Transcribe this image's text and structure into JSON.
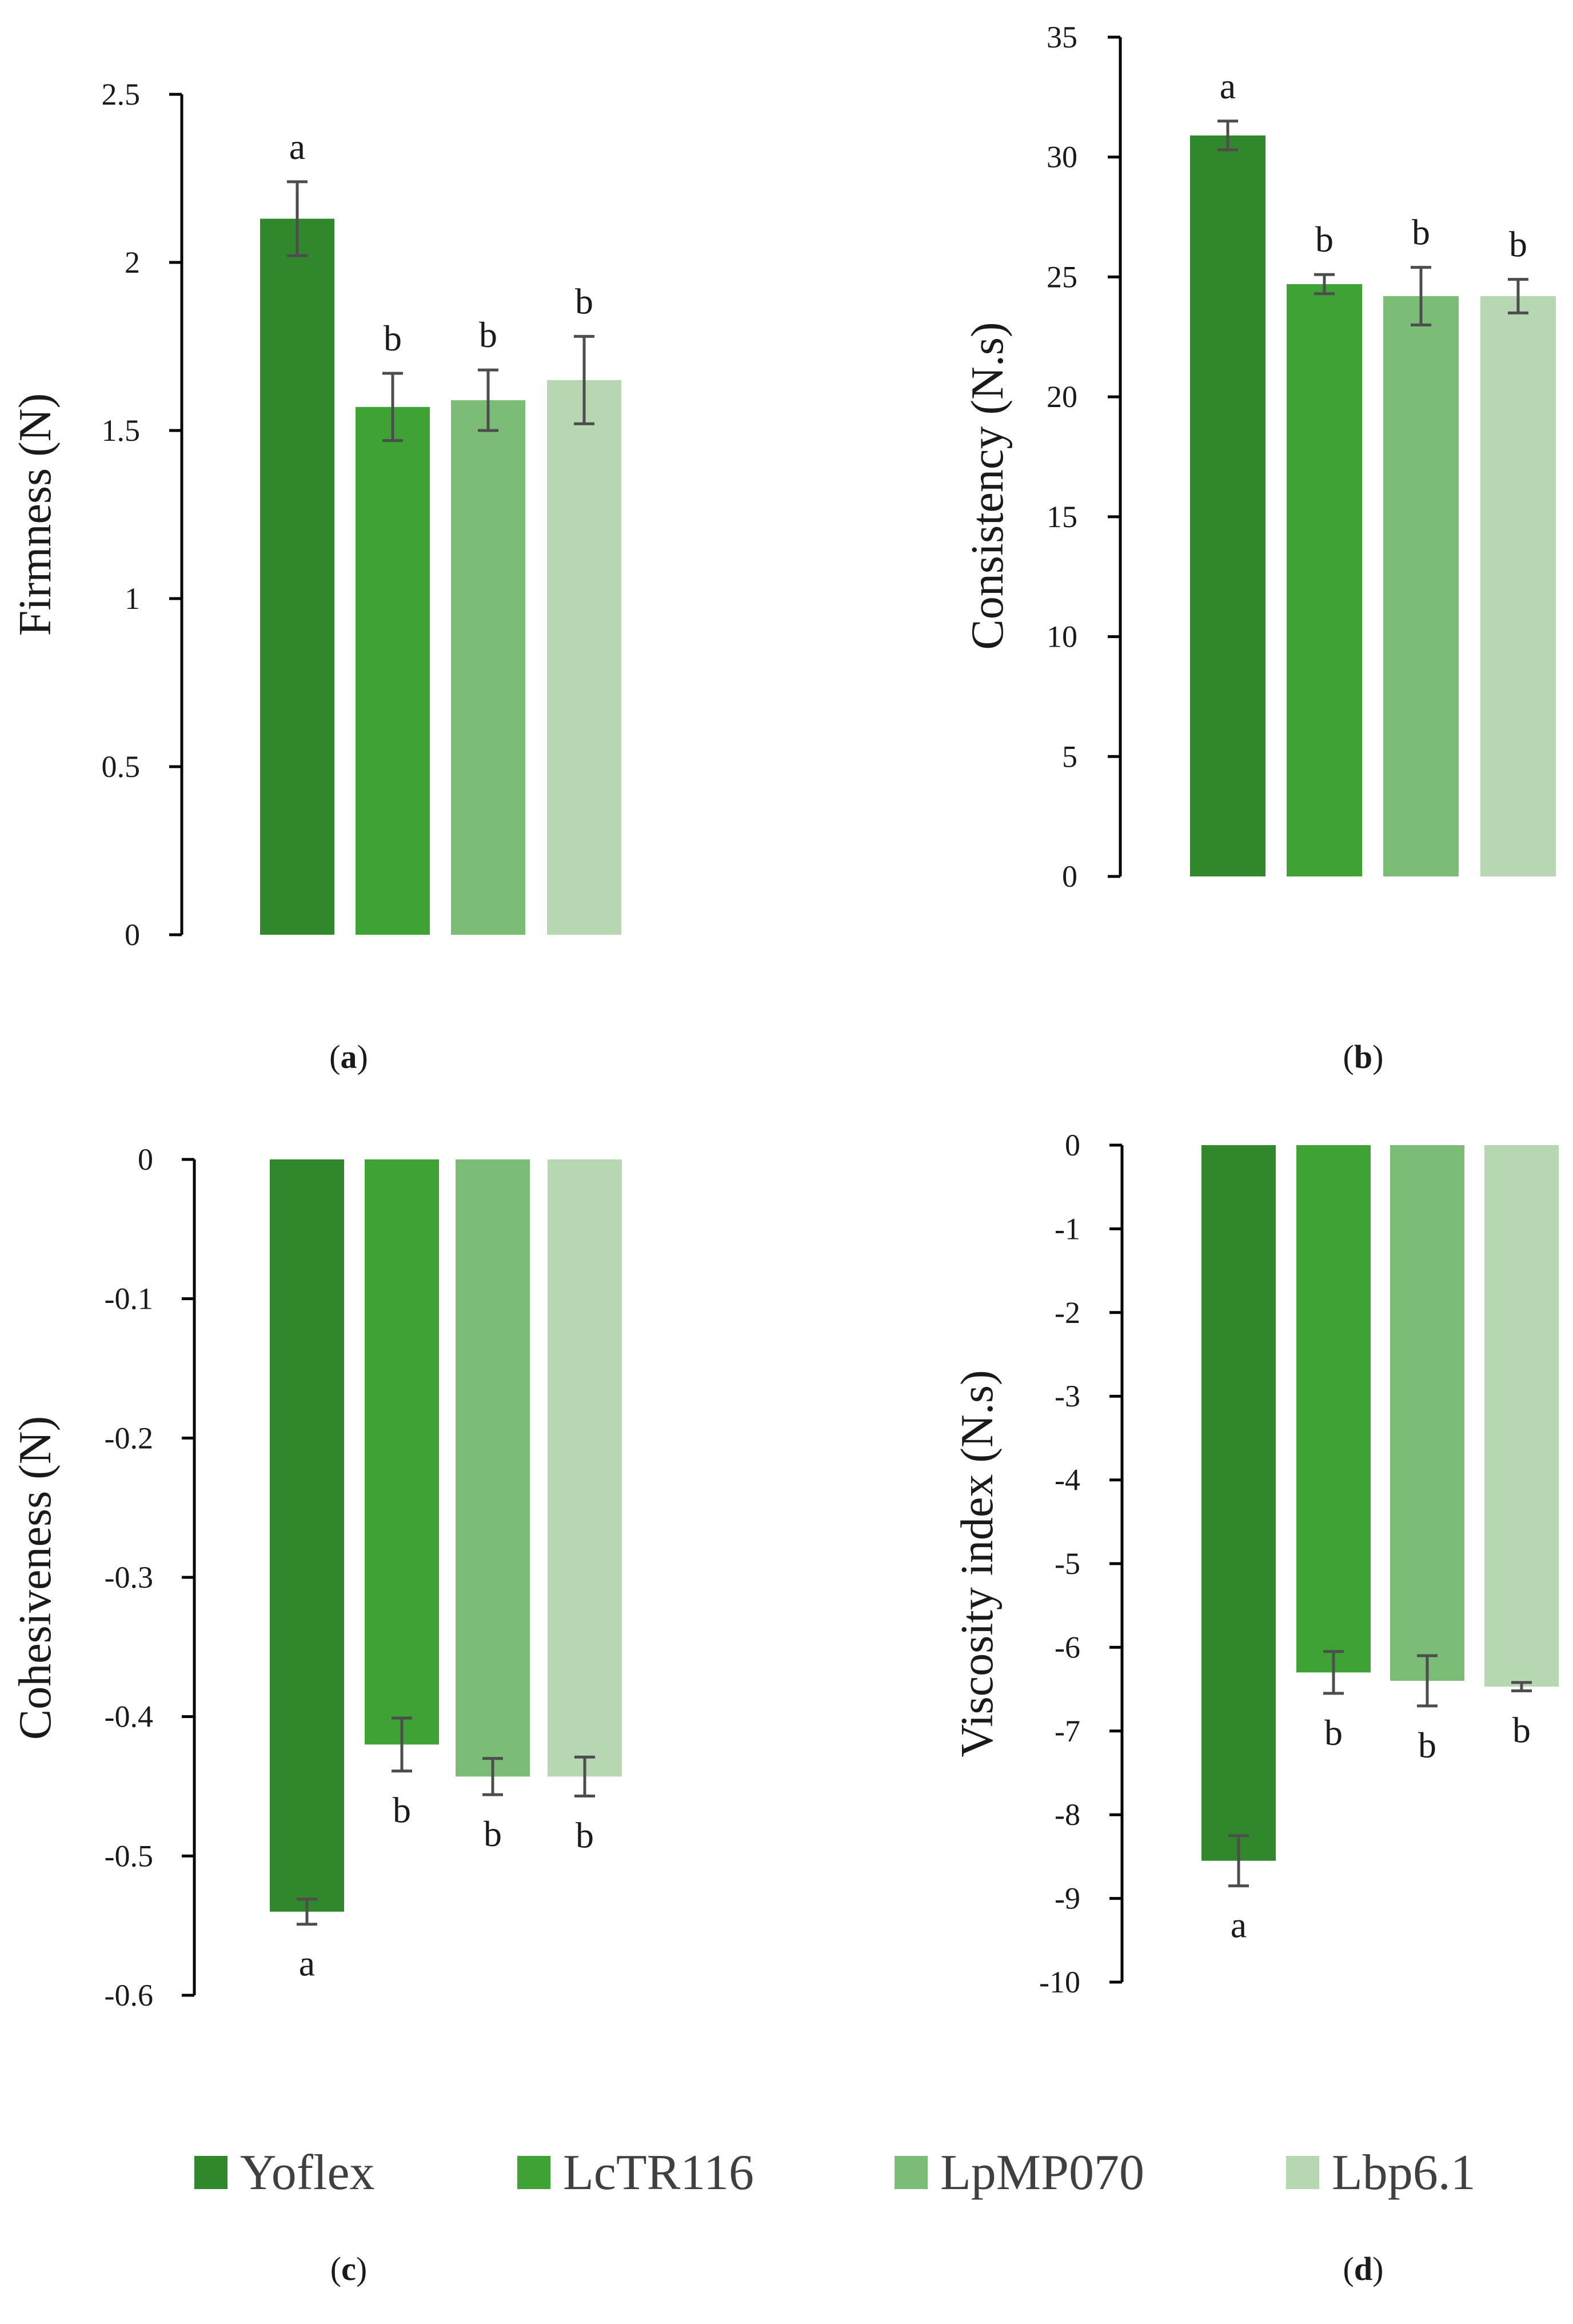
{
  "colors": {
    "Yoflex": "#31872c",
    "LcTR116": "#3ea234",
    "LpMP070": "#7bbd76",
    "Lbp6.1": "#b6d7b2",
    "axis": "#000000",
    "errorbar": "#4d4d4d"
  },
  "legend": {
    "items": [
      {
        "name": "Yoflex",
        "color_key": "Yoflex"
      },
      {
        "name": "LcTR116",
        "color_key": "LcTR116"
      },
      {
        "name": "LpMP070",
        "color_key": "LpMP070"
      },
      {
        "name": "Lbp6.1",
        "color_key": "Lbp6.1"
      }
    ]
  },
  "chart_data": [
    {
      "panel": "a",
      "type": "bar",
      "categories": [
        "Yoflex",
        "LcTR116",
        "LpMP070",
        "Lbp6.1"
      ],
      "values": [
        2.13,
        1.57,
        1.59,
        1.65
      ],
      "errors": [
        0.11,
        0.1,
        0.09,
        0.13
      ],
      "letters": [
        "a",
        "b",
        "b",
        "b"
      ],
      "ylabel": "Firmness (N)",
      "ylim": [
        0,
        2.5
      ],
      "yticks": [
        0,
        0.5,
        1,
        1.5,
        2,
        2.5
      ],
      "yticklabels": [
        "0",
        "0.5",
        "1",
        "1.5",
        "2",
        "2.5"
      ]
    },
    {
      "panel": "b",
      "type": "bar",
      "categories": [
        "Yoflex",
        "LcTR116",
        "LpMP070",
        "Lbp6.1"
      ],
      "values": [
        30.9,
        24.7,
        24.2,
        24.2
      ],
      "errors": [
        0.6,
        0.4,
        1.2,
        0.7
      ],
      "letters": [
        "a",
        "b",
        "b",
        "b"
      ],
      "ylabel": "Consistency (N.s)",
      "ylim": [
        0,
        35
      ],
      "yticks": [
        0,
        5,
        10,
        15,
        20,
        25,
        30,
        35
      ],
      "yticklabels": [
        "0",
        "5",
        "10",
        "15",
        "20",
        "25",
        "30",
        "35"
      ]
    },
    {
      "panel": "c",
      "type": "bar",
      "categories": [
        "Yoflex",
        "LcTR116",
        "LpMP070",
        "Lbp6.1"
      ],
      "values": [
        -0.54,
        -0.42,
        -0.443,
        -0.443
      ],
      "errors": [
        0.009,
        0.019,
        0.013,
        0.014
      ],
      "letters": [
        "a",
        "b",
        "b",
        "b"
      ],
      "ylabel": "Cohesiveness (N)",
      "ylim": [
        -0.6,
        0
      ],
      "yticks": [
        0,
        -0.1,
        -0.2,
        -0.3,
        -0.4,
        -0.5,
        -0.6
      ],
      "yticklabels": [
        "0",
        "-0.1",
        "-0.2",
        "-0.3",
        "-0.4",
        "-0.5",
        "-0.6"
      ]
    },
    {
      "panel": "d",
      "type": "bar",
      "categories": [
        "Yoflex",
        "LcTR116",
        "LpMP070",
        "Lbp6.1"
      ],
      "values": [
        -8.55,
        -6.3,
        -6.4,
        -6.47
      ],
      "errors": [
        0.3,
        0.25,
        0.3,
        0.05
      ],
      "letters": [
        "a",
        "b",
        "b",
        "b"
      ],
      "ylabel": "Viscosity index (N.s)",
      "ylim": [
        -10,
        0
      ],
      "yticks": [
        0,
        -1,
        -2,
        -3,
        -4,
        -5,
        -6,
        -7,
        -8,
        -9,
        -10
      ],
      "yticklabels": [
        "0",
        "-1",
        "-2",
        "-3",
        "-4",
        "-5",
        "-6",
        "-7",
        "-8",
        "-9",
        "-10"
      ]
    }
  ],
  "captions": [
    "a",
    "b",
    "c",
    "d"
  ]
}
